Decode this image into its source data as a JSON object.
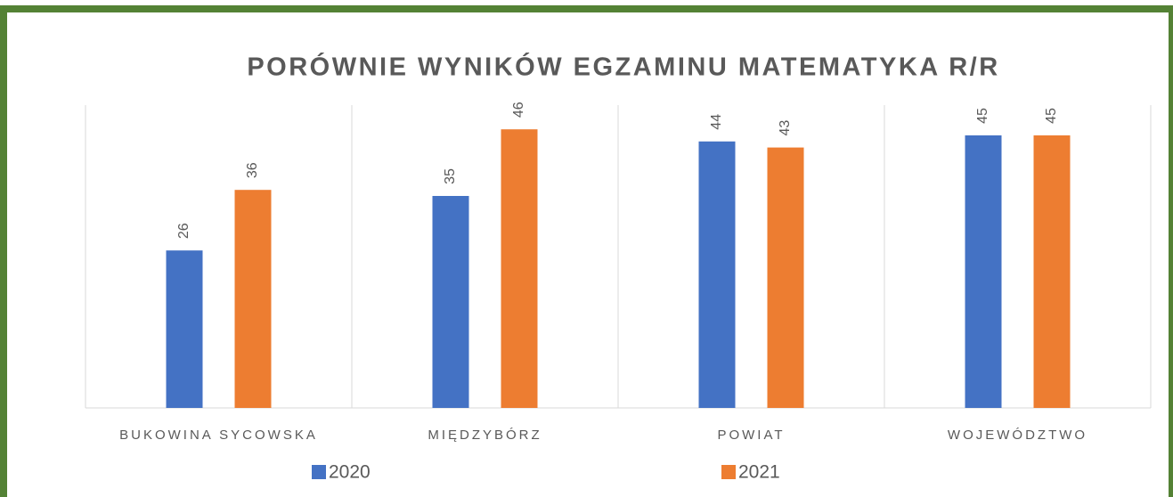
{
  "chart_data": {
    "type": "bar",
    "title": "PORÓWNIE WYNIKÓW EGZAMINU MATEMATYKA R/R",
    "categories": [
      "BUKOWINA SYCOWSKA",
      "MIĘDZYBÓRZ",
      "POWIAT",
      "WOJEWÓDZTWO"
    ],
    "series": [
      {
        "name": "2020",
        "color": "#4472c4",
        "values": [
          26,
          35,
          44,
          45
        ]
      },
      {
        "name": "2021",
        "color": "#ed7d31",
        "values": [
          36,
          46,
          43,
          45
        ]
      }
    ],
    "ylim": [
      0,
      50
    ]
  }
}
